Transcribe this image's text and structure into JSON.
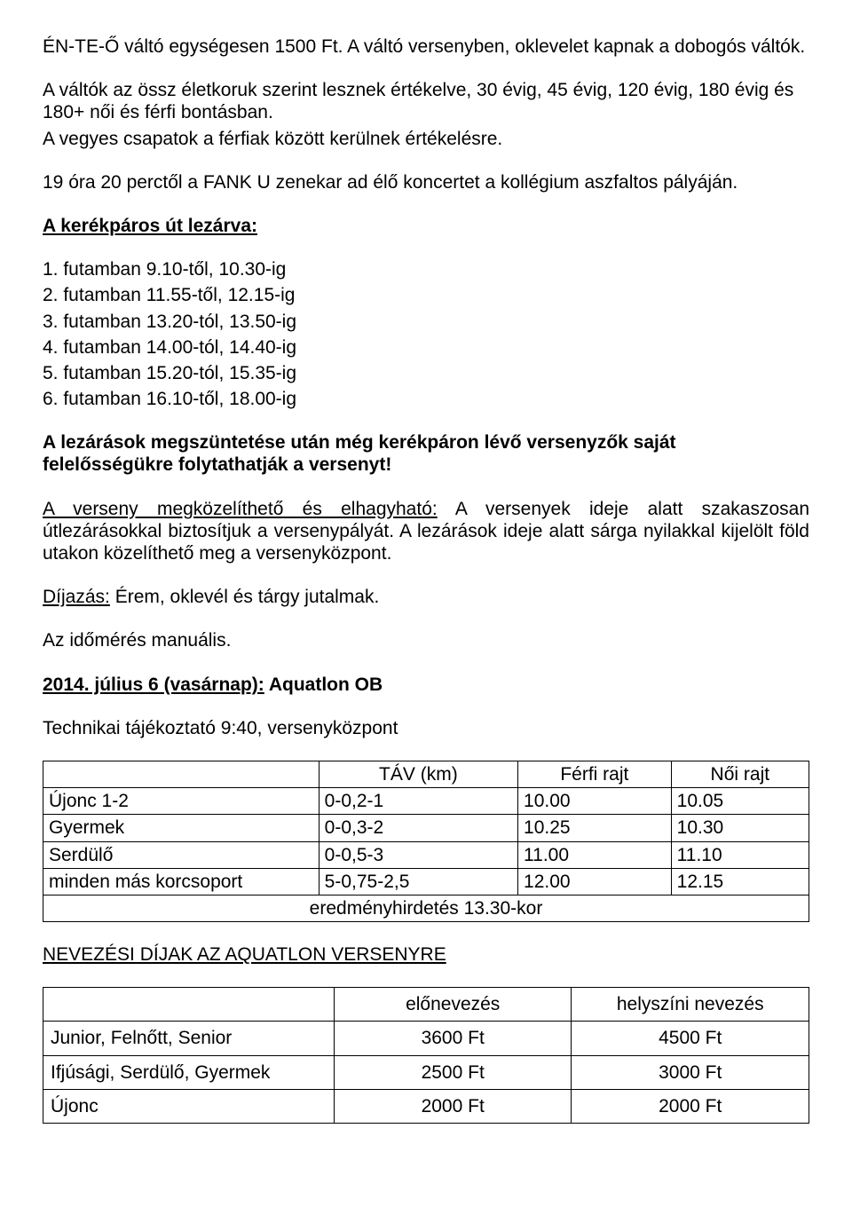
{
  "para1": "ÉN-TE-Ő váltó egységesen 1500 Ft. A váltó versenyben, oklevelet kapnak a dobogós váltók.",
  "para2": "A váltók az össz életkoruk szerint lesznek értékelve, 30 évig, 45 évig, 120 évig, 180 évig és 180+ női és férfi bontásban.",
  "para3": "A vegyes csapatok a férfiak között kerülnek értékelésre.",
  "para4": "19 óra 20 perctől a FANK U zenekar ad élő koncertet a kollégium aszfaltos pályáján.",
  "closure_heading": "A kerékpáros út lezárva:",
  "closures": [
    "1. futamban 9.10-től, 10.30-ig",
    "2. futamban 11.55-től, 12.15-ig",
    "3. futamban 13.20-tól, 13.50-ig",
    "4. futamban 14.00-tól, 14.40-ig",
    "5. futamban 15.20-tól, 15.35-ig",
    "6. futamban 16.10-től, 18.00-ig"
  ],
  "warning": "A lezárások megszüntetése után még kerékpáron lévő versenyzők saját felelősségükre folytathatják a versenyt!",
  "access_lead": "A verseny megközelíthető és elhagyható:",
  "access_text": " A versenyek ideje alatt szakaszosan útlezárásokkal biztosítjuk a versenypályát. A lezárások ideje alatt sárga nyilakkal kijelölt föld utakon közelíthető meg a versenyközpont.",
  "prize_lead": "Díjazás:",
  "prize_text": " Érem, oklevél és tárgy jutalmak.",
  "timing": "Az időmérés manuális.",
  "date_heading_u": "2014. július 6 (vasárnap):",
  "date_heading_rest": " Aquatlon OB",
  "tech_brief": "Technikai tájékoztató 9:40, versenyközpont",
  "schedule": {
    "headers": [
      "",
      "TÁV (km)",
      "Férfi rajt",
      "Női rajt"
    ],
    "rows": [
      [
        "Újonc 1-2",
        "0-0,2-1",
        "10.00",
        "10.05"
      ],
      [
        "Gyermek",
        "0-0,3-2",
        "10.25",
        "10.30"
      ],
      [
        "Serdülő",
        "0-0,5-3",
        "11.00",
        "11.10"
      ],
      [
        "minden más korcsoport",
        "5-0,75-2,5",
        "12.00",
        "12.15"
      ]
    ],
    "footer": "eredményhirdetés 13.30-kor"
  },
  "fees_heading": "NEVEZÉSI DÍJAK AZ AQUATLON VERSENYRE",
  "fees": {
    "headers": [
      "",
      "előnevezés",
      "helyszíni nevezés"
    ],
    "rows": [
      [
        "Junior, Felnőtt, Senior",
        "3600 Ft",
        "4500 Ft"
      ],
      [
        "Ifjúsági, Serdülő, Gyermek",
        "2500 Ft",
        "3000 Ft"
      ],
      [
        "Újonc",
        "2000 Ft",
        "2000 Ft"
      ]
    ]
  }
}
